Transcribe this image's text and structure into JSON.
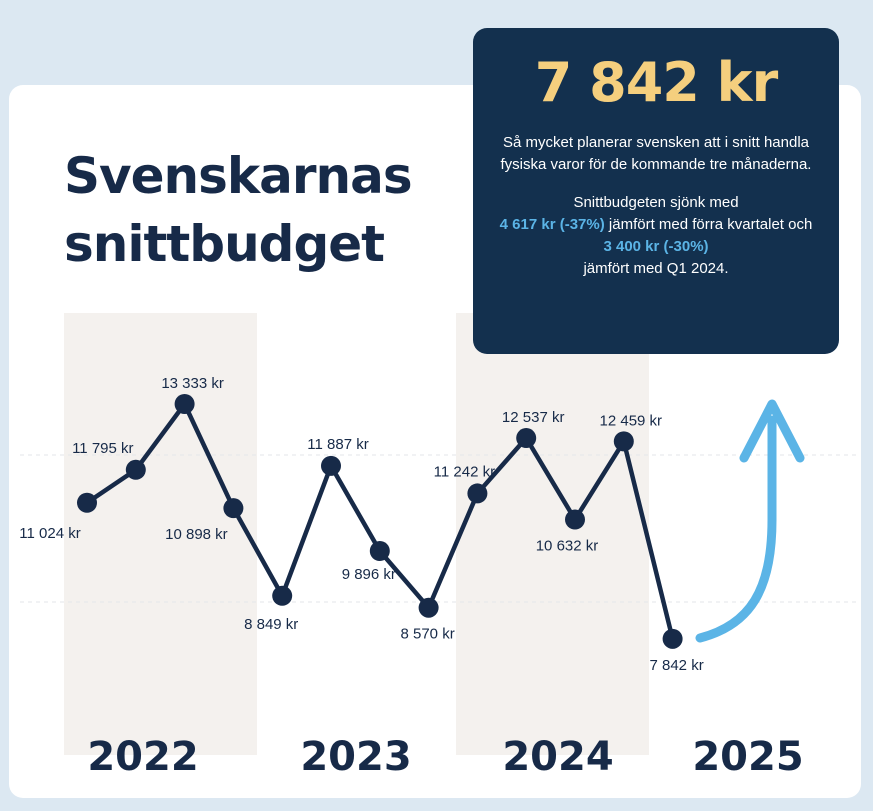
{
  "title_lines": [
    "Svenskarnas",
    "snittbudget"
  ],
  "callout": {
    "big_value": "7 842 kr",
    "line1": "Så mycket planerar svensken att i snitt handla fysiska varor för de kommande tre månaderna.",
    "p2_a": "Snittbudgeten sjönk med",
    "p2_hl1": "4 617 kr (-37%)",
    "p2_b": "jämfört med förra kvartalet och",
    "p2_hl2": "3 400 kr (-30%)",
    "p2_c": "jämfört med Q1 2024."
  },
  "colors": {
    "background": "#dce8f2",
    "card": "#ffffff",
    "band": "#f4f1ee",
    "line": "#172a48",
    "callout_bg": "#13304e",
    "callout_value": "#f5cf7e",
    "highlight": "#5bb4e6",
    "arrow": "#5bb4e6"
  },
  "icons": {
    "trend_arrow": "up-arrow-icon"
  },
  "chart_data": {
    "type": "line",
    "years": [
      "2022",
      "2023",
      "2024",
      "2025"
    ],
    "shaded_years": [
      "2022",
      "2024"
    ],
    "series": [
      {
        "values": [
          11024,
          11795,
          13333,
          10898,
          8849,
          11887,
          9896,
          8570,
          11242,
          12537,
          10632,
          12459,
          7842
        ],
        "labels": [
          "11 024 kr",
          "11 795 kr",
          "13 333 kr",
          "10 898 kr",
          "8 849 kr",
          "11 887 kr",
          "9 896 kr",
          "8 570 kr",
          "11 242 kr",
          "12 537 kr",
          "10 632 kr",
          "12 459 kr",
          "7 842 kr"
        ],
        "quarter_index": [
          0,
          1,
          2,
          3,
          4,
          5,
          6,
          7,
          8,
          9,
          10,
          11,
          12
        ]
      }
    ],
    "grid": "dashed-horizontal",
    "legend": "none"
  }
}
